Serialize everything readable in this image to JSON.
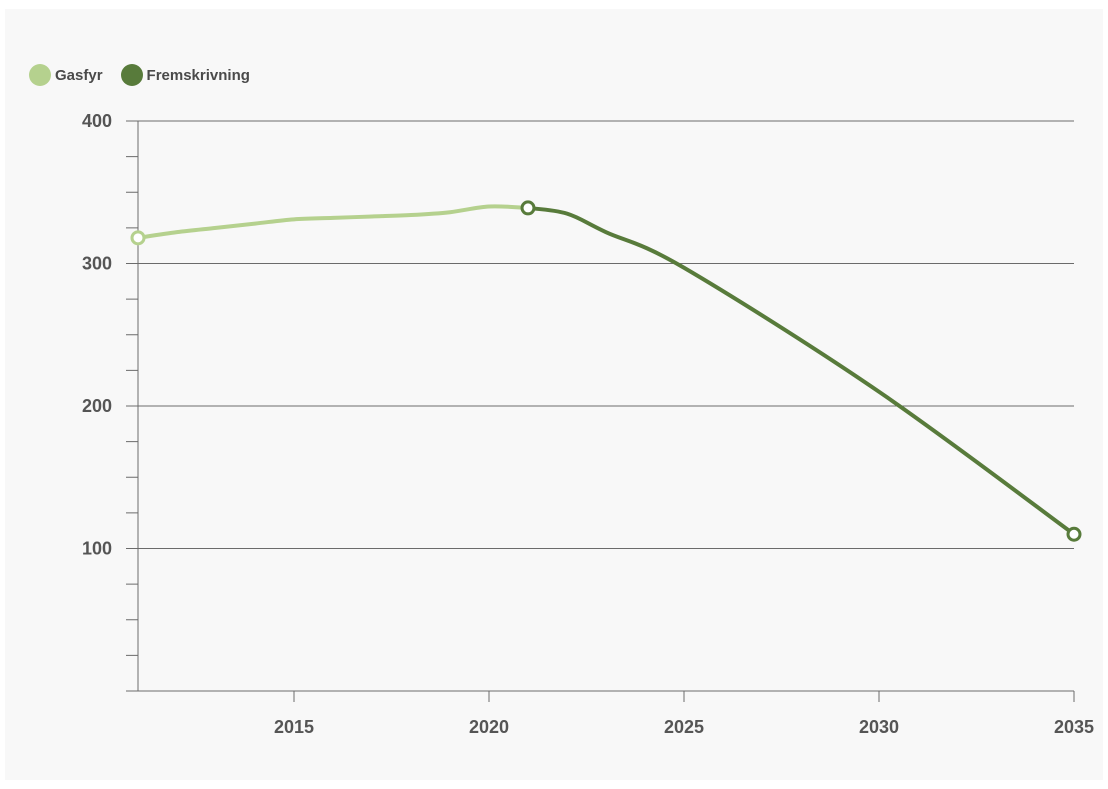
{
  "legend": {
    "items": [
      {
        "label": "Gasfyr",
        "color": "#b5d18e"
      },
      {
        "label": "Fremskrivning",
        "color": "#587b3b"
      }
    ]
  },
  "chart_data": {
    "type": "line",
    "title": "",
    "xlabel": "",
    "ylabel": "",
    "xlim": [
      2011,
      2035
    ],
    "ylim": [
      0,
      400
    ],
    "x_ticks": [
      2015,
      2020,
      2025,
      2030,
      2035
    ],
    "y_ticks": [
      100,
      200,
      300,
      400
    ],
    "y_minor_step": 25,
    "grid": "horizontal",
    "legend_position": "top-left",
    "series": [
      {
        "name": "Gasfyr",
        "color": "#b5d18e",
        "x": [
          2011,
          2012,
          2013,
          2014,
          2015,
          2016,
          2017,
          2018,
          2019,
          2020,
          2021
        ],
        "y": [
          318,
          322,
          325,
          328,
          331,
          332,
          333,
          334,
          336,
          340,
          339
        ]
      },
      {
        "name": "Fremskrivning",
        "color": "#587b3b",
        "x": [
          2021,
          2022,
          2023,
          2025,
          2030,
          2035
        ],
        "y": [
          339,
          335,
          322,
          297,
          210,
          110
        ]
      }
    ]
  }
}
